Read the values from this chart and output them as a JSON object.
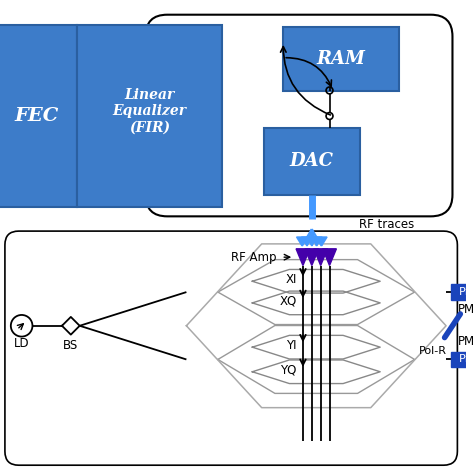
{
  "bg_color": "#ffffff",
  "blue_box_color": "#3d7cc9",
  "blue_box_edge": "#2a5fa0",
  "box_text_color": "#ffffff",
  "arrow_blue": "#4499ff",
  "purple_tri": "#4400aa",
  "pm_color": "#1a44bb",
  "fec_label": "FEC",
  "leq_label": "Linear\nEqualizer\n(FIR)",
  "ram_label": "RAM",
  "dac_label": "DAC",
  "rf_traces_label": "RF traces",
  "rf_amp_label": "RF Amp",
  "xi_label": "XI",
  "xq_label": "XQ",
  "yi_label": "YI",
  "yq_label": "YQ",
  "bs_label": "BS",
  "ld_label": "LD",
  "pm_label": "PM",
  "pol_label": "Pol-R"
}
